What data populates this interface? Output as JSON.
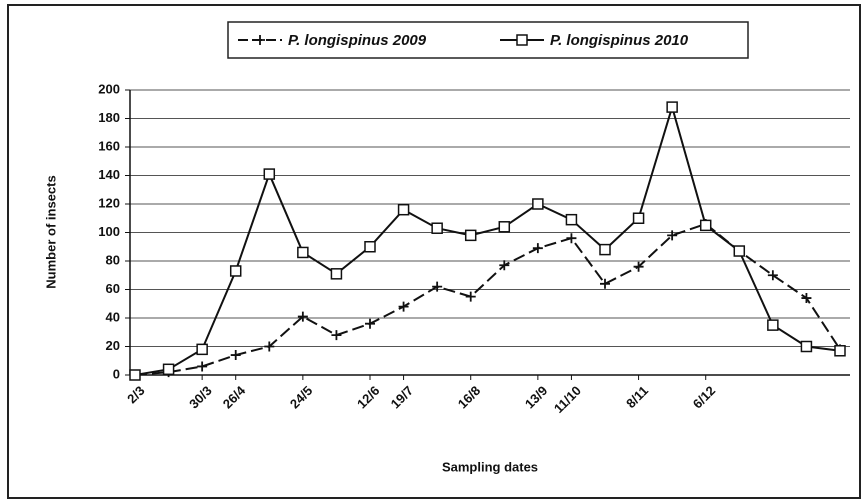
{
  "chart_data": {
    "type": "line",
    "xlabel": "Sampling dates",
    "ylabel": "Number of insects",
    "categories": [
      "2/3",
      null,
      "30/3",
      "26/4",
      null,
      "24/5",
      null,
      "12/6",
      "19/7",
      null,
      "16/8",
      null,
      "13/9",
      "11/10",
      null,
      "8/11",
      null,
      "6/12",
      null,
      null,
      null,
      null
    ],
    "series": [
      {
        "name": "P. longispinus 2009",
        "color": "#111111",
        "dashed": true,
        "marker": "plus",
        "values": [
          0,
          2,
          6,
          14,
          20,
          41,
          28,
          36,
          48,
          62,
          55,
          77,
          89,
          96,
          64,
          76,
          98,
          106,
          87,
          70,
          54,
          18
        ]
      },
      {
        "name": "P. longispinus 2010",
        "color": "#111111",
        "dashed": false,
        "marker": "square",
        "values": [
          0,
          4,
          18,
          73,
          141,
          86,
          71,
          90,
          116,
          103,
          98,
          104,
          120,
          109,
          88,
          110,
          188,
          105,
          87,
          35,
          20,
          17
        ]
      }
    ],
    "ylim": [
      0,
      200
    ],
    "yticks": [
      0,
      20,
      40,
      60,
      80,
      100,
      120,
      140,
      160,
      180,
      200
    ],
    "grid": true,
    "legend": "top"
  }
}
